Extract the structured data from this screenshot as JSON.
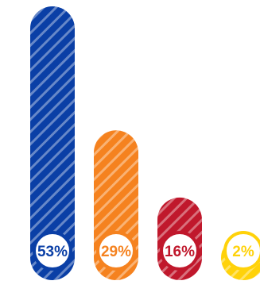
{
  "chart_data": {
    "type": "bar",
    "title": "",
    "xlabel": "",
    "ylabel": "",
    "ylim": [
      0,
      53
    ],
    "grid": false,
    "legend": "none",
    "categories": [
      "",
      "",
      "",
      ""
    ],
    "values": [
      53,
      29,
      16,
      2
    ],
    "labels": [
      "53%",
      "29%",
      "16%",
      "2%"
    ],
    "colors": [
      "#0a3fa6",
      "#f5821f",
      "#c0182c",
      "#ffd20a"
    ],
    "bar_style": "rounded-pill-diagonal-stripes"
  }
}
